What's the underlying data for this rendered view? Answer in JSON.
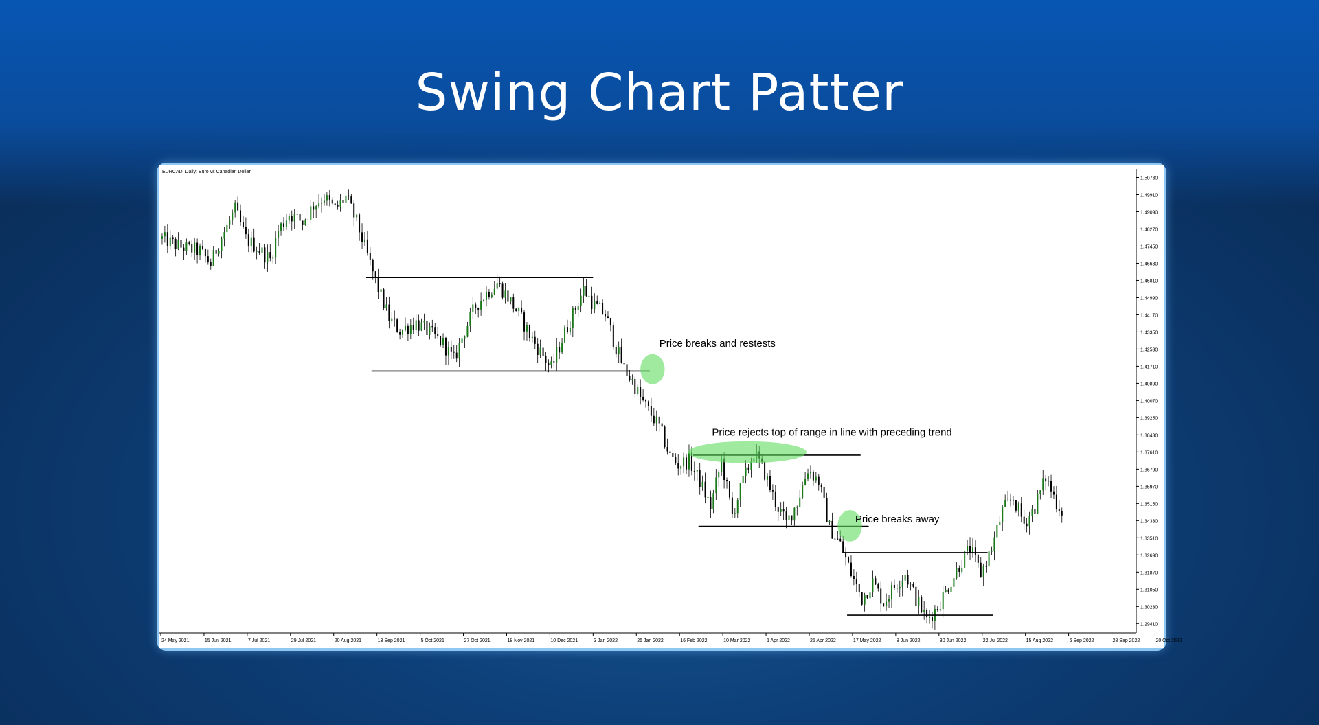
{
  "slide": {
    "title": "Swing Chart Patter"
  },
  "chart_data": {
    "type": "candlestick",
    "symbol_label": "EURCAD, Daily:  Euro vs Canadian Dollar",
    "ylim": [
      1.2896,
      1.5114
    ],
    "y_ticks": [
      "1.50730",
      "1.49910",
      "1.49090",
      "1.48270",
      "1.47450",
      "1.46630",
      "1.45810",
      "1.44990",
      "1.44170",
      "1.43350",
      "1.42530",
      "1.41710",
      "1.40890",
      "1.40070",
      "1.39250",
      "1.38430",
      "1.37610",
      "1.36790",
      "1.35970",
      "1.35150",
      "1.34330",
      "1.33510",
      "1.32690",
      "1.31870",
      "1.31050",
      "1.30230",
      "1.29410"
    ],
    "x_ticks": [
      "24 May 2021",
      "15 Jun 2021",
      "7 Jul 2021",
      "29 Jul 2021",
      "20 Aug 2021",
      "13 Sep 2021",
      "5 Oct 2021",
      "27 Oct 2021",
      "18 Nov 2021",
      "10 Dec 2021",
      "3 Jan 2022",
      "25 Jan 2022",
      "16 Feb 2022",
      "10 Mar 2022",
      "1 Apr 2022",
      "25 Apr 2022",
      "17 May 2022",
      "8 Jun 2022",
      "30 Jun 2022",
      "22 Jul 2022",
      "15 Aug 2022",
      "6 Sep 2022",
      "28 Sep 2022",
      "20 Oct 2022"
    ],
    "price_path": [
      [
        0,
        1.478
      ],
      [
        7,
        1.474
      ],
      [
        14,
        1.472
      ],
      [
        18,
        1.466
      ],
      [
        21,
        1.476
      ],
      [
        24,
        1.484
      ],
      [
        27,
        1.492
      ],
      [
        31,
        1.478
      ],
      [
        35,
        1.474
      ],
      [
        40,
        1.468
      ],
      [
        43,
        1.482
      ],
      [
        47,
        1.49
      ],
      [
        52,
        1.486
      ],
      [
        56,
        1.494
      ],
      [
        60,
        1.498
      ],
      [
        64,
        1.492
      ],
      [
        68,
        1.498
      ],
      [
        72,
        1.486
      ],
      [
        76,
        1.47
      ],
      [
        80,
        1.454
      ],
      [
        84,
        1.44
      ],
      [
        88,
        1.434
      ],
      [
        94,
        1.438
      ],
      [
        100,
        1.432
      ],
      [
        104,
        1.428
      ],
      [
        108,
        1.42
      ],
      [
        112,
        1.434
      ],
      [
        116,
        1.446
      ],
      [
        120,
        1.452
      ],
      [
        124,
        1.457
      ],
      [
        128,
        1.45
      ],
      [
        132,
        1.442
      ],
      [
        136,
        1.432
      ],
      [
        140,
        1.424
      ],
      [
        144,
        1.416
      ],
      [
        148,
        1.43
      ],
      [
        152,
        1.442
      ],
      [
        156,
        1.454
      ],
      [
        160,
        1.446
      ],
      [
        164,
        1.442
      ],
      [
        168,
        1.426
      ],
      [
        171,
        1.416
      ],
      [
        174,
        1.41
      ],
      [
        177,
        1.402
      ],
      [
        180,
        1.396
      ],
      [
        184,
        1.388
      ],
      [
        188,
        1.374
      ],
      [
        191,
        1.37
      ],
      [
        195,
        1.372
      ],
      [
        199,
        1.362
      ],
      [
        203,
        1.35
      ],
      [
        207,
        1.372
      ],
      [
        211,
        1.346
      ],
      [
        215,
        1.362
      ],
      [
        219,
        1.376
      ],
      [
        223,
        1.366
      ],
      [
        227,
        1.352
      ],
      [
        231,
        1.342
      ],
      [
        235,
        1.352
      ],
      [
        239,
        1.368
      ],
      [
        243,
        1.362
      ],
      [
        247,
        1.34
      ],
      [
        251,
        1.332
      ],
      [
        255,
        1.318
      ],
      [
        259,
        1.306
      ],
      [
        263,
        1.314
      ],
      [
        267,
        1.304
      ],
      [
        271,
        1.312
      ],
      [
        275,
        1.318
      ],
      [
        279,
        1.306
      ],
      [
        283,
        1.296
      ],
      [
        287,
        1.302
      ],
      [
        291,
        1.312
      ],
      [
        295,
        1.322
      ],
      [
        299,
        1.33
      ],
      [
        303,
        1.318
      ],
      [
        307,
        1.33
      ],
      [
        311,
        1.348
      ],
      [
        315,
        1.354
      ],
      [
        319,
        1.342
      ],
      [
        323,
        1.35
      ],
      [
        327,
        1.364
      ],
      [
        331,
        1.352
      ],
      [
        333,
        1.348
      ]
    ],
    "levels": [
      {
        "name": "range-1-top",
        "price": 1.4595,
        "from": 76,
        "to": 160
      },
      {
        "name": "range-1-bottom",
        "price": 1.4148,
        "from": 78,
        "to": 181
      },
      {
        "name": "range-2-top",
        "price": 1.3746,
        "from": 197,
        "to": 259
      },
      {
        "name": "range-2-bottom",
        "price": 1.3406,
        "from": 199,
        "to": 262
      },
      {
        "name": "range-3-top",
        "price": 1.328,
        "from": 252,
        "to": 306
      },
      {
        "name": "range-3-bottom",
        "price": 1.2981,
        "from": 254,
        "to": 308
      }
    ],
    "highlights": [
      {
        "name": "breaks-and-retests",
        "x": 182,
        "price": 1.4157,
        "rx_bars": 4.5,
        "ry_price": 0.0072
      },
      {
        "name": "rejects-top",
        "x": 217,
        "price": 1.376,
        "rx_bars": 22,
        "ry_price": 0.0052
      },
      {
        "name": "breaks-away",
        "x": 255,
        "price": 1.3408,
        "rx_bars": 4.5,
        "ry_price": 0.0075
      }
    ],
    "annotations": [
      {
        "text": "Price breaks and restests",
        "x": 184.5,
        "price": 1.4265
      },
      {
        "text": "Price rejects top of range in line with preceding trend",
        "x": 204,
        "price": 1.384
      },
      {
        "text": "Price breaks away",
        "x": 257,
        "price": 1.3425
      }
    ]
  }
}
